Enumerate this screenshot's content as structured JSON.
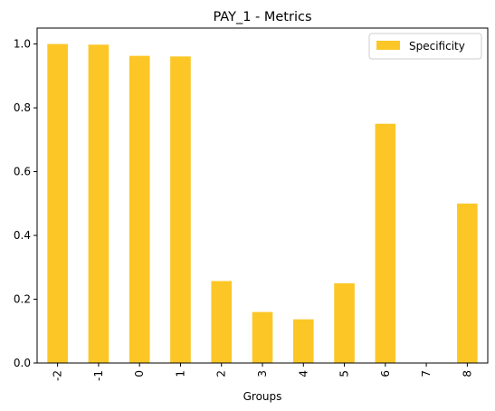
{
  "chart_data": {
    "type": "bar",
    "title": "PAY_1 - Metrics",
    "xlabel": "Groups",
    "ylabel": "",
    "categories": [
      "-2",
      "-1",
      "0",
      "1",
      "2",
      "3",
      "4",
      "5",
      "6",
      "7",
      "8"
    ],
    "series": [
      {
        "name": "Specificity",
        "color": "#fcc726",
        "values": [
          1.0,
          0.998,
          0.963,
          0.961,
          0.257,
          0.16,
          0.137,
          0.25,
          0.75,
          0.0,
          0.5
        ]
      }
    ],
    "ylim": [
      0,
      1.05
    ],
    "yticks": [
      "0.0",
      "0.2",
      "0.4",
      "0.6",
      "0.8",
      "1.0"
    ],
    "ytick_values": [
      0,
      0.2,
      0.4,
      0.6,
      0.8,
      1.0
    ],
    "grid": false,
    "legend_position": "top-right"
  }
}
